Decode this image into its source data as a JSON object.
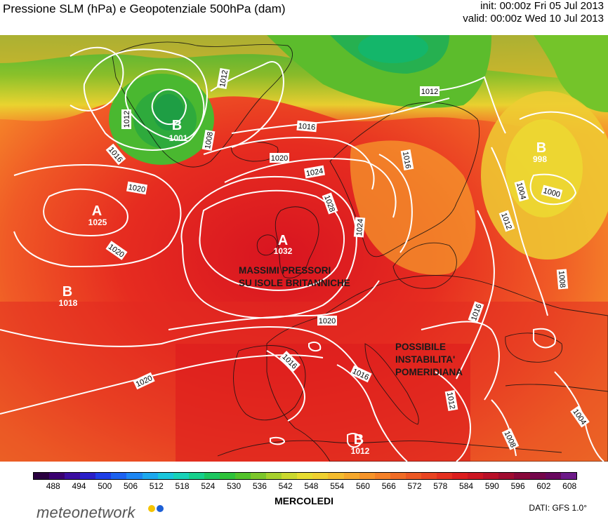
{
  "header": {
    "title": "Pressione SLM (hPa) e Geopotenziale 500hPa (dam)",
    "init": "init: 00:00z Fri 05 Jul 2013",
    "valid": "valid: 00:00z Wed 10 Jul 2013"
  },
  "map": {
    "pressure_centers": [
      {
        "type": "B",
        "value": "1001"
      },
      {
        "type": "B",
        "value": "998"
      },
      {
        "type": "A",
        "value": "1025"
      },
      {
        "type": "A",
        "value": "1032"
      },
      {
        "type": "B",
        "value": "1018"
      },
      {
        "type": "B",
        "value": "1012"
      }
    ],
    "isobar_labels": [
      "1012",
      "1016",
      "1008",
      "1012",
      "1016",
      "1020",
      "1024",
      "1028",
      "1020",
      "1012",
      "1016",
      "1004",
      "1000",
      "1012",
      "1020",
      "1024",
      "1020",
      "1008",
      "1016",
      "1016",
      "1020",
      "1016",
      "1012",
      "1004",
      "1008"
    ],
    "annotations": [
      {
        "lines": [
          "MASSIMI PRESSORI",
          "SU ISOLE BRITANNICHE"
        ]
      },
      {
        "lines": [
          "POSSIBILE",
          "INSTABILITA'",
          "POMERIDIANA"
        ]
      }
    ]
  },
  "colorbar": {
    "tick_labels": [
      "488",
      "494",
      "500",
      "506",
      "512",
      "518",
      "524",
      "530",
      "536",
      "542",
      "548",
      "554",
      "560",
      "566",
      "572",
      "578",
      "584",
      "590",
      "596",
      "602",
      "608"
    ],
    "colors": [
      "#2a0040",
      "#3a0070",
      "#3b0ea0",
      "#2a1fc8",
      "#1e3ee6",
      "#1c62f0",
      "#1d86f2",
      "#1ca8ee",
      "#19c6dc",
      "#18d2b8",
      "#16d08c",
      "#1cc660",
      "#2ec23a",
      "#52c22a",
      "#7cc62a",
      "#a6d02c",
      "#cad82e",
      "#e6dc30",
      "#f0d030",
      "#f4bc2e",
      "#f6a82c",
      "#f6942a",
      "#f48028",
      "#f06c26",
      "#ec5824",
      "#e84422",
      "#e43020",
      "#dc1e1e",
      "#cc1622",
      "#b81028",
      "#a00c30",
      "#88083a",
      "#74064a",
      "#68085e",
      "#6c1a88"
    ],
    "day_label": "MERCOLEDI"
  },
  "footer": {
    "logo_text": "meteonetwork",
    "logo_dot_colors": [
      "#f5c400",
      "#1d5fd6"
    ],
    "credit": "DATI:  GFS  1.0°"
  }
}
